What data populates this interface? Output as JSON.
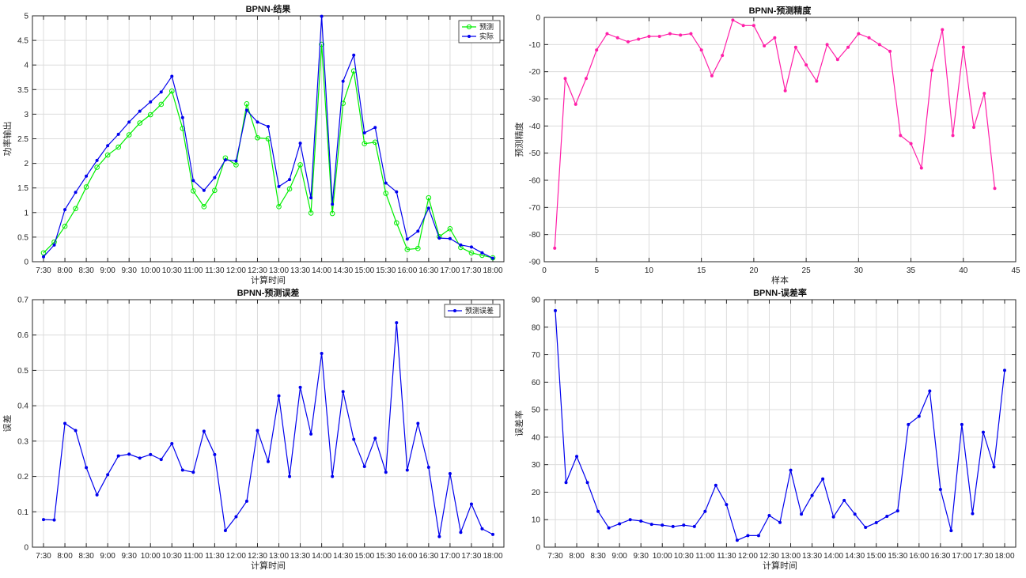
{
  "chart_data": [
    {
      "id": "result",
      "type": "line",
      "title": "BPNN-结果",
      "xlabel": "计算时间",
      "ylabel": "功率输出",
      "x_tick_labels": [
        "7:30",
        "8:00",
        "8:30",
        "9:00",
        "9:30",
        "10:00",
        "10:30",
        "11:00",
        "11:30",
        "12:00",
        "12:30",
        "13:00",
        "13:30",
        "14:00",
        "14:30",
        "15:00",
        "15:30",
        "16:00",
        "16:30",
        "17:00",
        "17:30",
        "18:00"
      ],
      "ylim": [
        0,
        5
      ],
      "y_ticks": [
        0,
        0.5,
        1,
        1.5,
        2,
        2.5,
        3,
        3.5,
        4,
        4.5,
        5
      ],
      "grid": true,
      "legend": "top-right",
      "series": [
        {
          "name": "预测",
          "color": "#00ee00",
          "marker": "circle",
          "values": [
            0.18,
            0.4,
            0.72,
            1.08,
            1.52,
            1.92,
            2.17,
            2.33,
            2.58,
            2.82,
            2.99,
            3.2,
            3.47,
            2.71,
            1.44,
            1.12,
            1.45,
            2.11,
            1.97,
            3.21,
            2.52,
            2.5,
            1.12,
            1.48,
            1.97,
            0.99,
            4.42,
            0.98,
            3.22,
            3.88,
            2.4,
            2.43,
            1.39,
            0.79,
            0.25,
            0.27,
            1.3,
            0.51,
            0.67,
            0.29,
            0.18,
            0.13,
            0.08
          ]
        },
        {
          "name": "实际",
          "color": "#0000ee",
          "marker": "dot",
          "values": [
            0.1,
            0.34,
            1.06,
            1.41,
            1.74,
            2.06,
            2.36,
            2.59,
            2.84,
            3.06,
            3.25,
            3.45,
            3.77,
            2.93,
            1.65,
            1.45,
            1.71,
            2.07,
            2.05,
            3.08,
            2.84,
            2.75,
            1.53,
            1.67,
            2.41,
            1.3,
            4.99,
            1.17,
            3.67,
            4.2,
            2.62,
            2.73,
            1.6,
            1.42,
            0.46,
            0.62,
            1.09,
            0.48,
            0.47,
            0.34,
            0.3,
            0.18,
            0.07
          ]
        }
      ]
    },
    {
      "id": "accuracy",
      "type": "line",
      "title": "BPNN-预测精度",
      "xlabel": "样本",
      "ylabel": "预测精度",
      "xlim": [
        0,
        45
      ],
      "x_ticks": [
        0,
        5,
        10,
        15,
        20,
        25,
        30,
        35,
        40,
        45
      ],
      "ylim": [
        -90,
        0
      ],
      "y_ticks": [
        0,
        -10,
        -20,
        -30,
        -40,
        -50,
        -60,
        -70,
        -80,
        -90
      ],
      "grid": true,
      "series": [
        {
          "color": "#ff1fa8",
          "marker": "dot",
          "x": [
            1,
            2,
            3,
            4,
            5,
            6,
            7,
            8,
            9,
            10,
            11,
            12,
            13,
            14,
            15,
            16,
            17,
            18,
            19,
            20,
            21,
            22,
            23,
            24,
            25,
            26,
            27,
            28,
            29,
            30,
            31,
            32,
            33,
            34,
            35,
            36,
            37,
            38,
            39,
            40,
            41,
            42,
            43
          ],
          "values": [
            -85,
            -22.5,
            -32,
            -22.5,
            -12,
            -6,
            -7.5,
            -9,
            -8,
            -7,
            -7,
            -6,
            -6.5,
            -6,
            -12,
            -21.5,
            -14,
            -1,
            -3,
            -3,
            -10.5,
            -7.5,
            -27,
            -11,
            -17.5,
            -23.5,
            -10,
            -15.5,
            -11,
            -6,
            -7.5,
            -10,
            -12.5,
            -43.5,
            -46.5,
            -55.5,
            -19.5,
            -4.5,
            -43.5,
            -11,
            -40.5,
            -28,
            -63
          ]
        }
      ]
    },
    {
      "id": "error",
      "type": "line",
      "title": "BPNN-预测误差",
      "xlabel": "计算时间",
      "ylabel": "误差",
      "x_tick_labels": [
        "7:30",
        "8:00",
        "8:30",
        "9:00",
        "9:30",
        "10:00",
        "10:30",
        "11:00",
        "11:30",
        "12:00",
        "12:30",
        "13:00",
        "13:30",
        "14:00",
        "14:30",
        "15:00",
        "15:30",
        "16:00",
        "16:30",
        "17:00",
        "17:30",
        "18:00"
      ],
      "ylim": [
        0,
        0.7
      ],
      "y_ticks": [
        0,
        0.1,
        0.2,
        0.3,
        0.4,
        0.5,
        0.6,
        0.7
      ],
      "grid": true,
      "legend": "top-right",
      "series": [
        {
          "name": "预测误差",
          "color": "#0000ee",
          "marker": "dot",
          "values": [
            0.078,
            0.077,
            0.35,
            0.33,
            0.225,
            0.148,
            0.205,
            0.258,
            0.263,
            0.252,
            0.262,
            0.248,
            0.293,
            0.218,
            0.212,
            0.328,
            0.262,
            0.047,
            0.086,
            0.13,
            0.33,
            0.242,
            0.428,
            0.2,
            0.452,
            0.32,
            0.548,
            0.2,
            0.44,
            0.305,
            0.228,
            0.308,
            0.212,
            0.635,
            0.218,
            0.35,
            0.226,
            0.03,
            0.208,
            0.042,
            0.122,
            0.052,
            0.036
          ]
        }
      ]
    },
    {
      "id": "error_rate",
      "type": "line",
      "title": "BPNN-误差率",
      "xlabel": "计算时间",
      "ylabel": "误差率",
      "x_tick_labels": [
        "7:30",
        "8:00",
        "8:30",
        "9:00",
        "9:30",
        "10:00",
        "10:30",
        "11:00",
        "11:30",
        "12:00",
        "12:30",
        "13:00",
        "13:30",
        "14:00",
        "14:30",
        "15:00",
        "15:30",
        "16:00",
        "16:30",
        "17:00",
        "17:30",
        "18:00"
      ],
      "ylim": [
        0,
        90
      ],
      "y_ticks": [
        0,
        10,
        20,
        30,
        40,
        50,
        60,
        70,
        80,
        90
      ],
      "grid": true,
      "series": [
        {
          "color": "#0000ee",
          "marker": "dot",
          "values": [
            86,
            23.5,
            33,
            23.5,
            13,
            7,
            8.5,
            10,
            9.5,
            8.3,
            8,
            7.5,
            8,
            7.5,
            13,
            22.5,
            15.5,
            2.5,
            4.2,
            4.2,
            11.5,
            9,
            28,
            12,
            18.8,
            24.8,
            11,
            17,
            12,
            7.2,
            8.9,
            11.2,
            13.2,
            44.6,
            47.6,
            56.8,
            21,
            6,
            44.6,
            12.2,
            41.8,
            29.2,
            64.3
          ]
        }
      ]
    }
  ]
}
